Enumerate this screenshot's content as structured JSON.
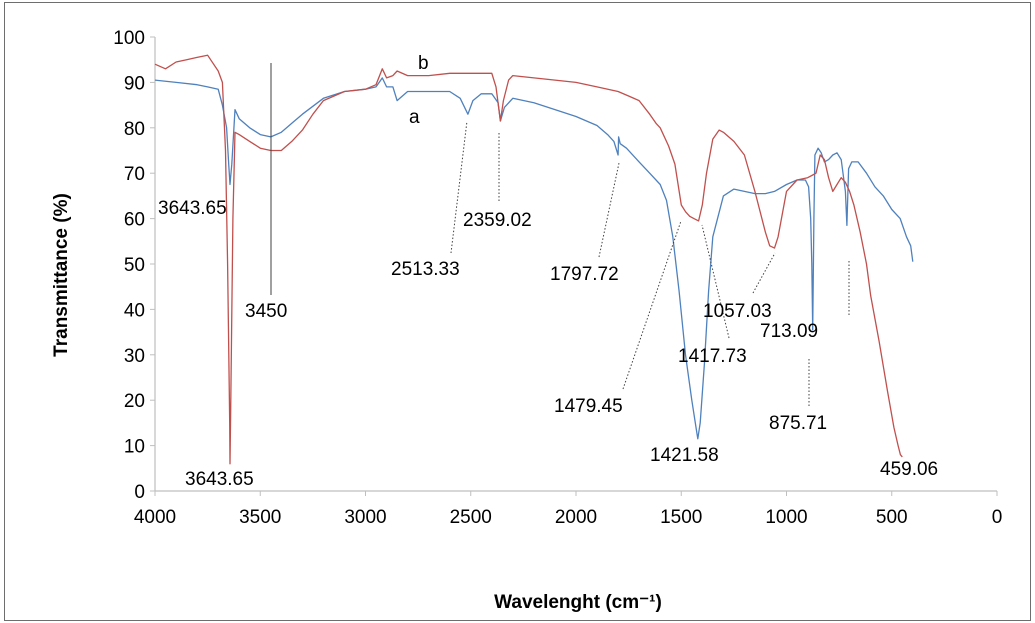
{
  "chart_data": {
    "type": "line",
    "title": "",
    "xlabel": "Wavelenght (cm⁻¹)",
    "ylabel": "Transmittance (%)",
    "xlim": [
      4000,
      0
    ],
    "x_reversed": true,
    "ylim": [
      0,
      100
    ],
    "x_ticks": [
      "4000",
      "3500",
      "3000",
      "2500",
      "2000",
      "1500",
      "1000",
      "500",
      "0"
    ],
    "y_ticks": [
      "0",
      "10",
      "20",
      "30",
      "40",
      "50",
      "60",
      "70",
      "80",
      "90",
      "100"
    ],
    "grid": false,
    "legend": "none",
    "series": [
      {
        "name": "a",
        "color": "#4f81bd",
        "x": [
          4000,
          3900,
          3800,
          3750,
          3700,
          3680,
          3660,
          3650,
          3643.65,
          3635,
          3620,
          3600,
          3550,
          3500,
          3450,
          3400,
          3350,
          3300,
          3200,
          3100,
          3000,
          2950,
          2920,
          2900,
          2870,
          2850,
          2800,
          2700,
          2600,
          2550,
          2513.33,
          2490,
          2450,
          2400,
          2370,
          2359.02,
          2340,
          2300,
          2200,
          2100,
          2000,
          1900,
          1850,
          1820,
          1800,
          1797.72,
          1790,
          1760,
          1700,
          1650,
          1600,
          1570,
          1540,
          1510,
          1480,
          1450,
          1430,
          1421.58,
          1410,
          1390,
          1370,
          1350,
          1300,
          1250,
          1200,
          1150,
          1100,
          1057.03,
          1000,
          950,
          910,
          895,
          885,
          880,
          875.71,
          870,
          865,
          850,
          835,
          820,
          800,
          780,
          760,
          740,
          720,
          713.09,
          705,
          690,
          660,
          620,
          580,
          540,
          500,
          460,
          430,
          410,
          400
        ],
        "y": [
          90.5,
          90,
          89.5,
          89,
          88.5,
          85,
          80,
          72,
          67.5,
          72,
          84,
          82,
          80,
          78.5,
          78,
          79,
          81,
          83,
          86.5,
          88,
          88.5,
          89,
          91,
          89,
          89,
          86,
          88,
          88,
          88,
          86.5,
          83,
          86,
          87.5,
          87.5,
          85.5,
          81.5,
          84.5,
          86.5,
          85.5,
          84,
          82.5,
          80.5,
          78.5,
          77,
          74,
          78,
          76.5,
          75.5,
          72.5,
          70,
          67.5,
          64,
          56,
          44,
          30,
          20,
          14,
          11.5,
          15,
          28,
          44,
          56,
          65,
          66.5,
          66,
          65.5,
          65.5,
          66,
          67.5,
          68.5,
          68.5,
          67,
          60,
          50,
          35.5,
          60,
          74,
          75.5,
          74.5,
          72.5,
          73,
          74,
          74.5,
          73,
          66,
          58.5,
          71,
          72.5,
          72.5,
          70,
          67,
          65,
          62,
          60,
          56,
          54,
          50.5
        ]
      },
      {
        "name": "b",
        "color": "#c0504d",
        "x": [
          4000,
          3950,
          3900,
          3850,
          3800,
          3750,
          3700,
          3680,
          3665,
          3655,
          3645,
          3643.65,
          3640,
          3630,
          3620,
          3600,
          3550,
          3500,
          3450,
          3400,
          3350,
          3300,
          3250,
          3200,
          3100,
          3000,
          2950,
          2920,
          2900,
          2870,
          2850,
          2800,
          2700,
          2600,
          2500,
          2400,
          2380,
          2359.02,
          2345,
          2320,
          2300,
          2200,
          2100,
          2000,
          1900,
          1800,
          1750,
          1700,
          1650,
          1620,
          1600,
          1560,
          1530,
          1500,
          1479.45,
          1460,
          1440,
          1417.73,
          1400,
          1380,
          1350,
          1320,
          1300,
          1250,
          1200,
          1150,
          1100,
          1080,
          1057.03,
          1040,
          1000,
          950,
          900,
          880,
          860,
          840,
          820,
          800,
          780,
          760,
          740,
          720,
          700,
          680,
          650,
          620,
          600,
          560,
          520,
          490,
          470,
          459.06,
          450
        ],
        "y": [
          94,
          93,
          94.5,
          95,
          95.5,
          96,
          92.5,
          90,
          75,
          50,
          15,
          6,
          20,
          60,
          79,
          78.5,
          77,
          75.5,
          75,
          75,
          77,
          79.5,
          83,
          86,
          88,
          88.5,
          89.5,
          93,
          91,
          91.5,
          92.5,
          91.5,
          91.5,
          92,
          92,
          92,
          89,
          81.5,
          86,
          90.5,
          91.5,
          91,
          90.5,
          90,
          89,
          88,
          87,
          86,
          83,
          81,
          80,
          76,
          72,
          63,
          61.5,
          60.5,
          60,
          59.5,
          63,
          70,
          77.5,
          79.5,
          79,
          77,
          74,
          66,
          57,
          54,
          53.5,
          56,
          66,
          68.5,
          69,
          69.5,
          70,
          74,
          73,
          69,
          66,
          67.5,
          69,
          68,
          66,
          63,
          57,
          50,
          43,
          33,
          22,
          14,
          10,
          8,
          7.5
        ]
      }
    ],
    "series_labels": [
      "a",
      "b"
    ],
    "annotations": [
      "3643.65",
      "3643.65",
      "3450",
      "2513.33",
      "2359.02",
      "1797.72",
      "1479.45",
      "1417.73",
      "1421.58",
      "1057.03",
      "713.09",
      "875.71",
      "459.06"
    ]
  }
}
